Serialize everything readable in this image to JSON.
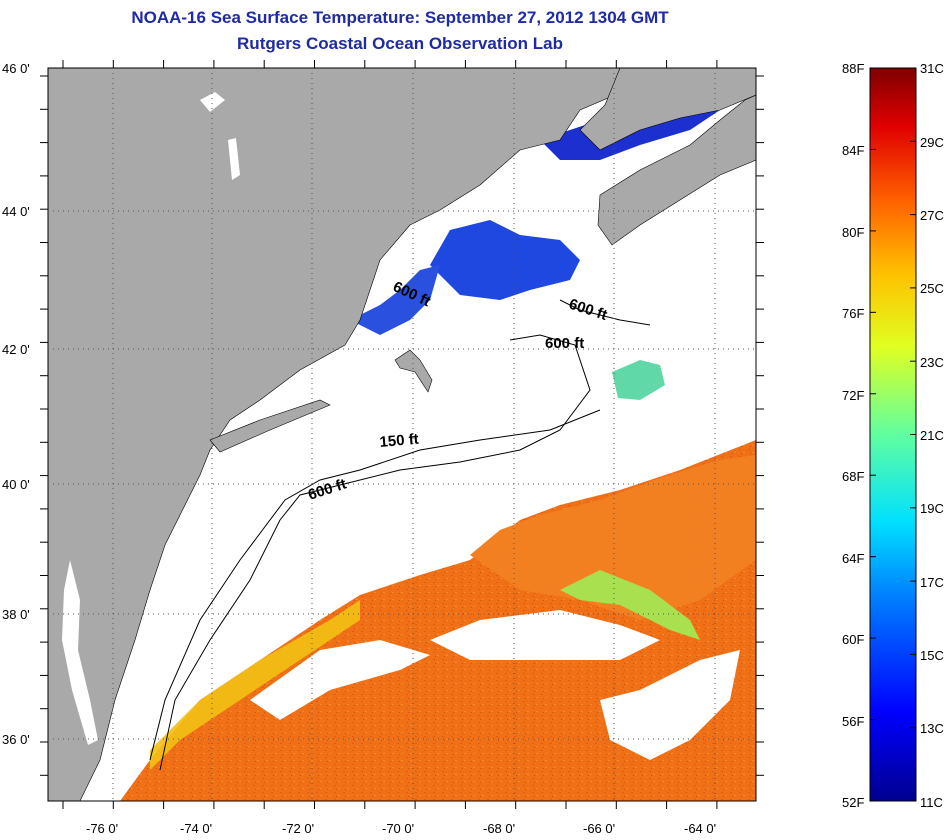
{
  "title": {
    "line1": "NOAA-16 Sea Surface Temperature:  September 27, 2012 1304 GMT",
    "line2": "Rutgers Coastal Ocean Observation Lab"
  },
  "map": {
    "lat_labels": [
      "46 0'",
      "44 0'",
      "42 0'",
      "40 0'",
      "38 0'",
      "36 0'"
    ],
    "lon_labels": [
      "-76 0'",
      "-74 0'",
      "-72 0'",
      "-70 0'",
      "-68 0'",
      "-66 0'",
      "-64 0'"
    ],
    "contour_labels": [
      "600 ft",
      "600 ft",
      "600 ft",
      "150 ft",
      "600 ft"
    ],
    "colors": {
      "land": "#a9a9a9",
      "no_data": "#ffffff",
      "cold_water": "#1e3fd8",
      "warm_water": "#f07018",
      "cool_patch": "#5fd8b0"
    }
  },
  "colorbar": {
    "f_labels": [
      "88F",
      "84F",
      "80F",
      "76F",
      "72F",
      "68F",
      "64F",
      "60F",
      "56F",
      "52F"
    ],
    "c_labels": [
      "31C",
      "29C",
      "27C",
      "25C",
      "23C",
      "21C",
      "19C",
      "17C",
      "15C",
      "13C",
      "11C"
    ],
    "min_c": 11,
    "max_c": 31
  }
}
